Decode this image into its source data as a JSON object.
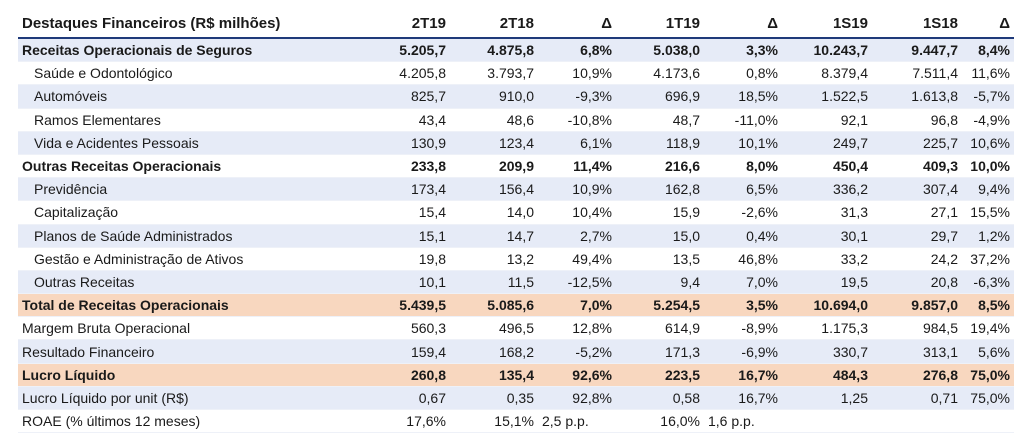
{
  "header": [
    "Destaques Financeiros (R$ milhões)",
    "2T19",
    "2T18",
    "Δ",
    "1T19",
    "Δ",
    "1S19",
    "1S18",
    "Δ"
  ],
  "rows": [
    {
      "id": "receitas-seguros",
      "type": "section",
      "shade": true,
      "label": "Receitas Operacionais de Seguros",
      "values": [
        "5.205,7",
        "4.875,8",
        "6,8%",
        "5.038,0",
        "3,3%",
        "10.243,7",
        "9.447,7",
        "8,4%"
      ]
    },
    {
      "id": "saude",
      "type": "sub",
      "shade": false,
      "label": "Saúde e Odontológico",
      "values": [
        "4.205,8",
        "3.793,7",
        "10,9%",
        "4.173,6",
        "0,8%",
        "8.379,4",
        "7.511,4",
        "11,6%"
      ]
    },
    {
      "id": "automoveis",
      "type": "sub",
      "shade": true,
      "label": "Automóveis",
      "values": [
        "825,7",
        "910,0",
        "-9,3%",
        "696,9",
        "18,5%",
        "1.522,5",
        "1.613,8",
        "-5,7%"
      ]
    },
    {
      "id": "ramos",
      "type": "sub",
      "shade": false,
      "label": "Ramos Elementares",
      "values": [
        "43,4",
        "48,6",
        "-10,8%",
        "48,7",
        "-11,0%",
        "92,1",
        "96,8",
        "-4,9%"
      ]
    },
    {
      "id": "vida",
      "type": "sub",
      "shade": true,
      "label": "Vida e Acidentes Pessoais",
      "values": [
        "130,9",
        "123,4",
        "6,1%",
        "118,9",
        "10,1%",
        "249,7",
        "225,7",
        "10,6%"
      ]
    },
    {
      "id": "outras-receitas-op",
      "type": "section",
      "shade": false,
      "label": "Outras Receitas Operacionais",
      "values": [
        "233,8",
        "209,9",
        "11,4%",
        "216,6",
        "8,0%",
        "450,4",
        "409,3",
        "10,0%"
      ]
    },
    {
      "id": "previdencia",
      "type": "sub",
      "shade": true,
      "label": "Previdência",
      "values": [
        "173,4",
        "156,4",
        "10,9%",
        "162,8",
        "6,5%",
        "336,2",
        "307,4",
        "9,4%"
      ]
    },
    {
      "id": "capitalizacao",
      "type": "sub",
      "shade": false,
      "label": "Capitalização",
      "values": [
        "15,4",
        "14,0",
        "10,4%",
        "15,9",
        "-2,6%",
        "31,3",
        "27,1",
        "15,5%"
      ]
    },
    {
      "id": "planos-saude",
      "type": "sub",
      "shade": true,
      "label": "Planos de Saúde Administrados",
      "values": [
        "15,1",
        "14,7",
        "2,7%",
        "15,0",
        "0,4%",
        "30,1",
        "29,7",
        "1,2%"
      ]
    },
    {
      "id": "gestao",
      "type": "sub",
      "shade": false,
      "label": "Gestão e Administração de Ativos",
      "values": [
        "19,8",
        "13,2",
        "49,4%",
        "13,5",
        "46,8%",
        "33,2",
        "24,2",
        "37,2%"
      ]
    },
    {
      "id": "outras-receitas",
      "type": "sub",
      "shade": true,
      "label": "Outras Receitas",
      "values": [
        "10,1",
        "11,5",
        "-12,5%",
        "9,4",
        "7,0%",
        "19,5",
        "20,8",
        "-6,3%"
      ]
    },
    {
      "id": "total-receitas",
      "type": "total",
      "shade": false,
      "label": "Total de Receitas Operacionais",
      "values": [
        "5.439,5",
        "5.085,6",
        "7,0%",
        "5.254,5",
        "3,5%",
        "10.694,0",
        "9.857,0",
        "8,5%"
      ]
    },
    {
      "id": "margem-bruta",
      "type": "plain",
      "shade": false,
      "label": "Margem Bruta Operacional",
      "values": [
        "560,3",
        "496,5",
        "12,8%",
        "614,9",
        "-8,9%",
        "1.175,3",
        "984,5",
        "19,4%"
      ]
    },
    {
      "id": "resultado-financeiro",
      "type": "plain",
      "shade": true,
      "label": "Resultado Financeiro",
      "values": [
        "159,4",
        "168,2",
        "-5,2%",
        "171,3",
        "-6,9%",
        "330,7",
        "313,1",
        "5,6%"
      ]
    },
    {
      "id": "lucro-liquido",
      "type": "total",
      "shade": false,
      "label": "Lucro Líquido",
      "values": [
        "260,8",
        "135,4",
        "92,6%",
        "223,5",
        "16,7%",
        "484,3",
        "276,8",
        "75,0%"
      ]
    },
    {
      "id": "lucro-por-unit",
      "type": "plain",
      "shade": true,
      "label": "Lucro Líquido por unit (R$)",
      "values": [
        "0,67",
        "0,35",
        "92,8%",
        "0,58",
        "16,7%",
        "1,25",
        "0,71",
        "75,0%"
      ]
    },
    {
      "id": "roae",
      "type": "plain",
      "shade": false,
      "label": "ROAE (% últimos 12 meses)",
      "values": [
        "17,6%",
        "15,1%",
        "2,5 p.p.",
        "16,0%",
        "1,6 p.p.",
        "",
        "",
        ""
      ]
    }
  ]
}
